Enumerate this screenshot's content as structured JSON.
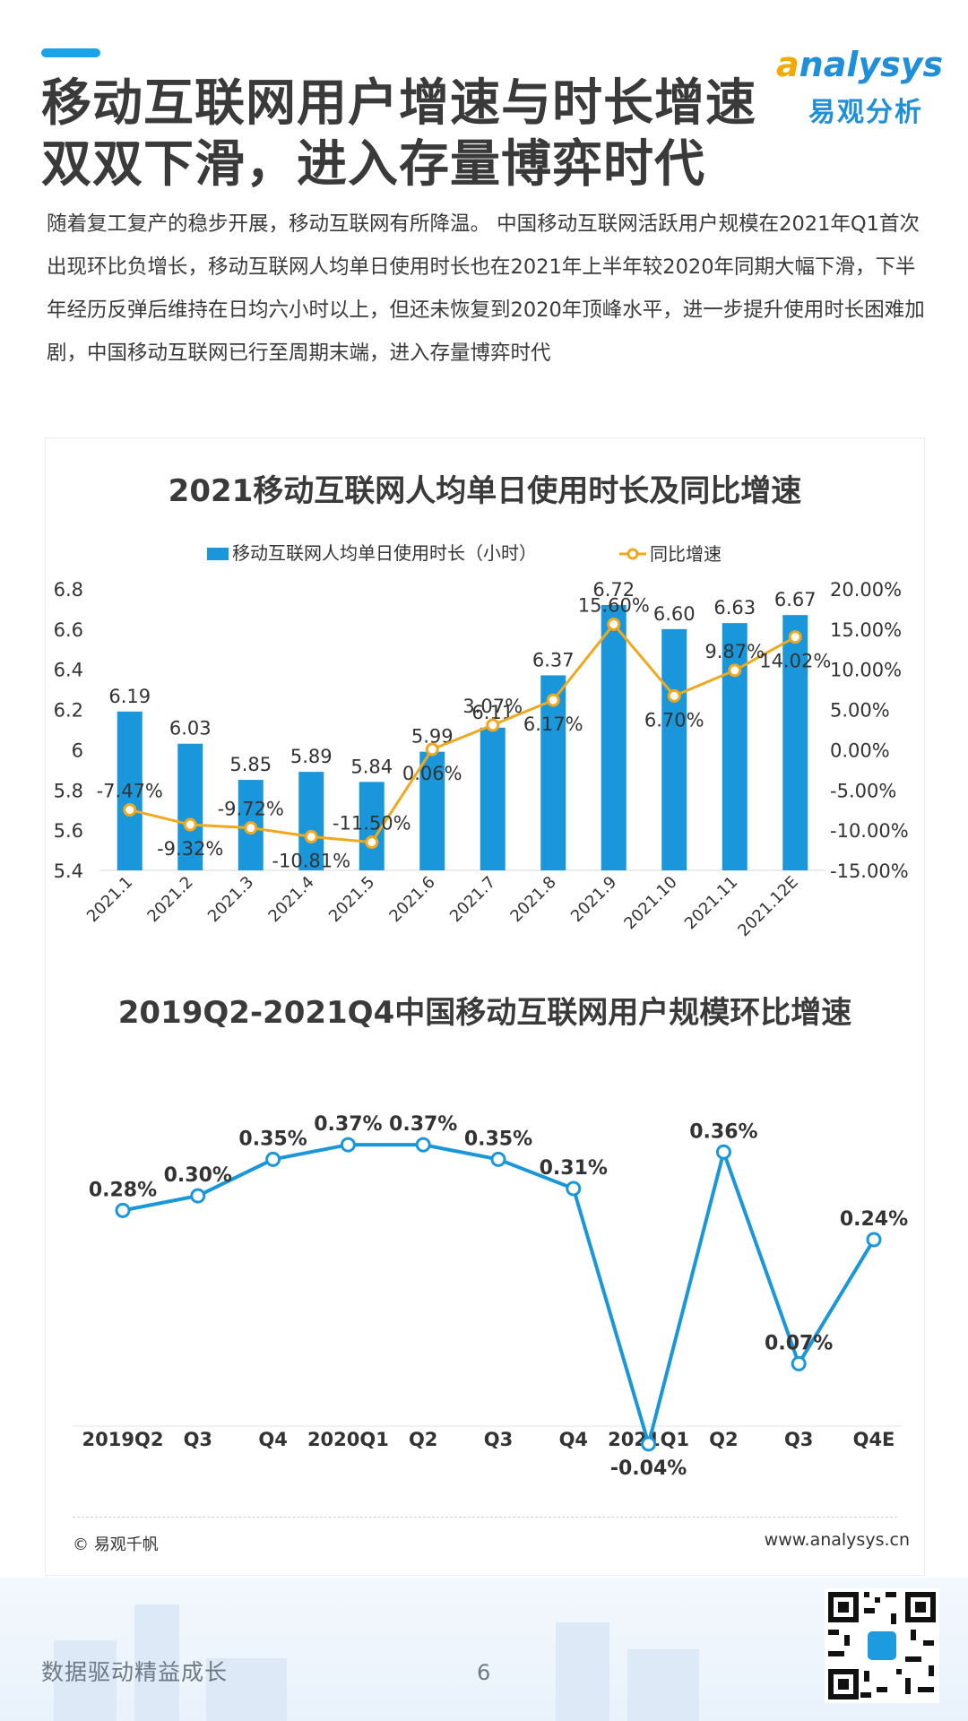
{
  "header": {
    "title_line1": "移动互联网用户增速与时长增速",
    "title_line2": "双双下滑，进入存量博弈时代",
    "logo_en": "nalysys",
    "logo_en_initial": "a",
    "logo_cn": "易观分析"
  },
  "intro_text": "随着复工复产的稳步开展，移动互联网有所降温。 中国移动互联网活跃用户规模在2021年Q1首次出现环比负增长，移动互联网人均单日使用时长也在2021年上半年较2020年同期大幅下滑，下半年经历反弹后维持在日均六小时以上，但还未恢复到2020年顶峰水平，进一步提升使用时长困难加剧，中国移动互联网已行至周期末端，进入存量博弈时代",
  "chart_data": [
    {
      "type": "bar",
      "title": "2021移动互联网人均单日使用时长及同比增速",
      "categories": [
        "2021.1",
        "2021.2",
        "2021.3",
        "2021.4",
        "2021.5",
        "2021.6",
        "2021.7",
        "2021.8",
        "2021.9",
        "2021.10",
        "2021.11",
        "2021.12E"
      ],
      "series": [
        {
          "name": "移动互联网人均单日使用时长（小时）",
          "type": "bar",
          "axis": "left",
          "values": [
            6.19,
            6.03,
            5.85,
            5.89,
            5.84,
            5.99,
            6.11,
            6.37,
            6.72,
            6.6,
            6.63,
            6.67
          ],
          "labels": [
            "6.19",
            "6.03",
            "5.85",
            "5.89",
            "5.84",
            "5.99",
            "6.11",
            "6.37",
            "6.72",
            "6.60",
            "6.63",
            "6.67"
          ]
        },
        {
          "name": "同比增速",
          "type": "line",
          "axis": "right",
          "values": [
            -7.47,
            -9.32,
            -9.72,
            -10.81,
            -11.5,
            0.06,
            3.07,
            6.17,
            15.6,
            6.7,
            9.87,
            14.02
          ],
          "labels": [
            "-7.47%",
            "-9.32%",
            "-9.72%",
            "-10.81%",
            "-11.50%",
            "0.06%",
            "3.07%",
            "6.17%",
            "15.60%",
            "6.70%",
            "9.87%",
            "14.02%"
          ]
        }
      ],
      "y_left": {
        "range": [
          5.4,
          6.8
        ],
        "ticks": [
          "5.4",
          "5.6",
          "5.8",
          "6",
          "6.2",
          "6.4",
          "6.6",
          "6.8"
        ]
      },
      "y_right": {
        "range": [
          -15,
          20
        ],
        "ticks": [
          "-15.00%",
          "-10.00%",
          "-5.00%",
          "0.00%",
          "5.00%",
          "10.00%",
          "15.00%",
          "20.00%"
        ]
      },
      "legend": "top",
      "grid": false,
      "colors": {
        "bar": "#1a97da",
        "line": "#f0a81e",
        "text": "#333333"
      }
    },
    {
      "type": "line",
      "title": "2019Q2-2021Q4中国移动互联网用户规模环比增速",
      "categories": [
        "2019Q2",
        "Q3",
        "Q4",
        "2020Q1",
        "Q2",
        "Q3",
        "Q4",
        "2021Q1",
        "Q2",
        "Q3",
        "Q4E"
      ],
      "series": [
        {
          "values": [
            0.28,
            0.3,
            0.35,
            0.37,
            0.37,
            0.35,
            0.31,
            -0.04,
            0.36,
            0.07,
            0.24
          ],
          "labels": [
            "0.28%",
            "0.30%",
            "0.35%",
            "0.37%",
            "0.37%",
            "0.35%",
            "0.31%",
            "-0.04%",
            "0.36%",
            "0.07%",
            "0.24%"
          ]
        }
      ],
      "legend": "none",
      "grid": false,
      "colors": {
        "line": "#1a97da",
        "marker_fill": "#ffffff"
      }
    }
  ],
  "footer": {
    "source": "© 易观千帆",
    "website": "www.analysys.cn"
  },
  "page": {
    "slogan": "数据驱动精益成长",
    "number": "6"
  }
}
